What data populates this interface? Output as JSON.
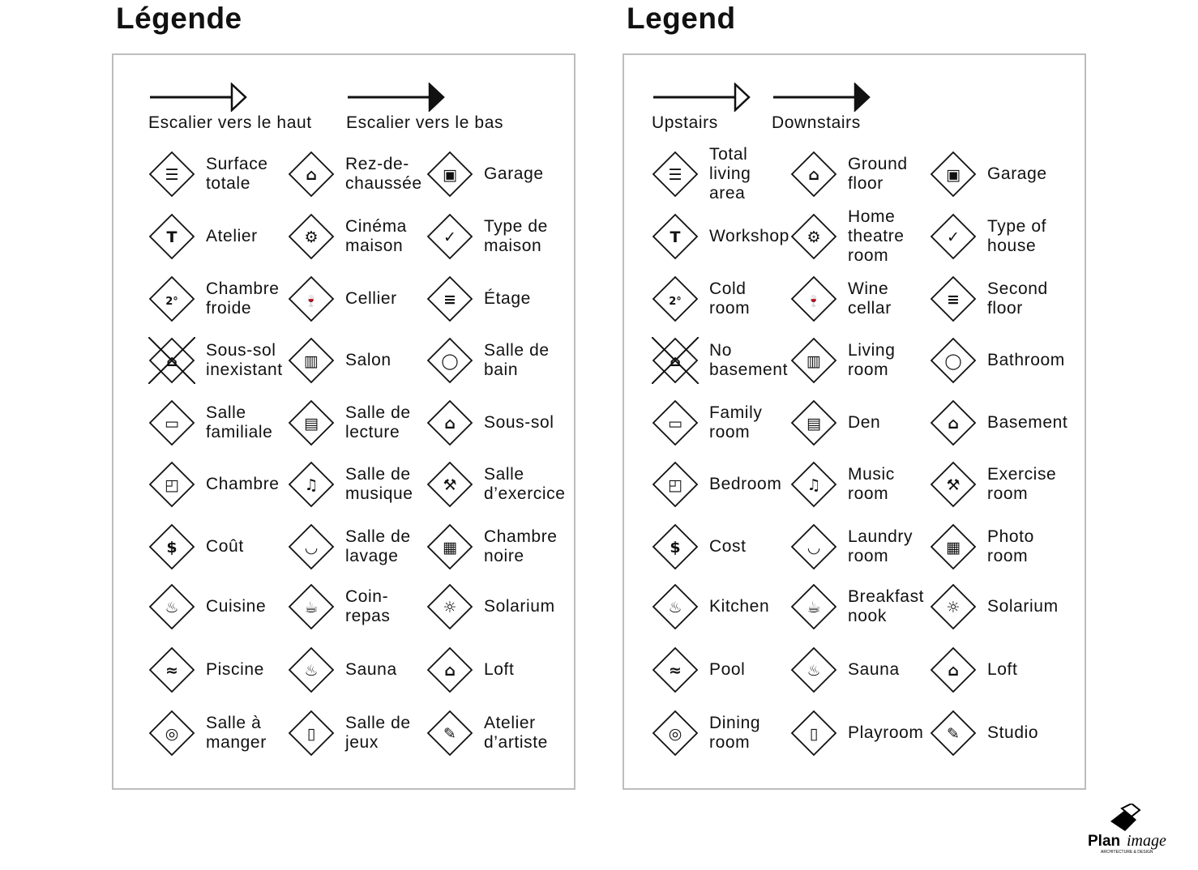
{
  "panels": [
    {
      "title": "Légende",
      "upstairs": "Escalier vers le haut",
      "downstairs": "Escalier vers le bas",
      "items": [
        {
          "label": "Surface\ntotale",
          "icon": "total-area-icon"
        },
        {
          "label": "Rez-de-\nchaussée",
          "icon": "ground-floor-icon"
        },
        {
          "label": "Garage",
          "icon": "garage-icon"
        },
        {
          "label": "Atelier",
          "icon": "hammer-icon"
        },
        {
          "label": "Cinéma\nmaison",
          "icon": "home-theatre-icon"
        },
        {
          "label": "Type de\nmaison",
          "icon": "house-check-icon"
        },
        {
          "label": "Chambre\nfroide",
          "icon": "thermometer-icon"
        },
        {
          "label": "Cellier",
          "icon": "wine-icon"
        },
        {
          "label": "Étage",
          "icon": "second-floor-icon"
        },
        {
          "label": "Sous-sol\ninexistant",
          "icon": "no-basement-icon"
        },
        {
          "label": "Salon",
          "icon": "sofa-icon"
        },
        {
          "label": "Salle de\nbain",
          "icon": "toilet-icon"
        },
        {
          "label": "Salle\nfamiliale",
          "icon": "tv-icon"
        },
        {
          "label": "Salle de\nlecture",
          "icon": "book-icon"
        },
        {
          "label": "Sous-sol",
          "icon": "basement-icon"
        },
        {
          "label": "Chambre",
          "icon": "bed-icon"
        },
        {
          "label": "Salle de\nmusique",
          "icon": "music-note-icon"
        },
        {
          "label": "Salle\nd’exercice",
          "icon": "dumbbell-icon"
        },
        {
          "label": "Coût",
          "icon": "dollar-icon"
        },
        {
          "label": "Salle de\nlavage",
          "icon": "laundry-basket-icon"
        },
        {
          "label": "Chambre\nnoire",
          "icon": "camera-icon"
        },
        {
          "label": "Cuisine",
          "icon": "cooking-pot-icon"
        },
        {
          "label": "Coin-\nrepas",
          "icon": "coffee-cup-icon"
        },
        {
          "label": "Solarium",
          "icon": "sun-icon"
        },
        {
          "label": "Piscine",
          "icon": "swimmer-icon"
        },
        {
          "label": "Sauna",
          "icon": "sauna-icon"
        },
        {
          "label": "Loft",
          "icon": "loft-icon"
        },
        {
          "label": "Salle à\nmanger",
          "icon": "plate-cutlery-icon"
        },
        {
          "label": "Salle de\njeux",
          "icon": "playing-card-icon"
        },
        {
          "label": "Atelier\nd’artiste",
          "icon": "palette-icon"
        }
      ]
    },
    {
      "title": "Legend",
      "upstairs": "Upstairs",
      "downstairs": "Downstairs",
      "items": [
        {
          "label": "Total\nliving\narea",
          "icon": "total-area-icon"
        },
        {
          "label": "Ground\nfloor",
          "icon": "ground-floor-icon"
        },
        {
          "label": "Garage",
          "icon": "garage-icon"
        },
        {
          "label": "Workshop",
          "icon": "hammer-icon"
        },
        {
          "label": "Home\ntheatre\nroom",
          "icon": "home-theatre-icon"
        },
        {
          "label": "Type of\nhouse",
          "icon": "house-check-icon"
        },
        {
          "label": "Cold\nroom",
          "icon": "thermometer-icon"
        },
        {
          "label": "Wine\ncellar",
          "icon": "wine-icon"
        },
        {
          "label": "Second\nfloor",
          "icon": "second-floor-icon"
        },
        {
          "label": "No\nbasement",
          "icon": "no-basement-icon"
        },
        {
          "label": "Living\nroom",
          "icon": "sofa-icon"
        },
        {
          "label": "Bathroom",
          "icon": "toilet-icon"
        },
        {
          "label": "Family\nroom",
          "icon": "tv-icon"
        },
        {
          "label": "Den",
          "icon": "book-icon"
        },
        {
          "label": "Basement",
          "icon": "basement-icon"
        },
        {
          "label": "Bedroom",
          "icon": "bed-icon"
        },
        {
          "label": "Music\nroom",
          "icon": "music-note-icon"
        },
        {
          "label": "Exercise\nroom",
          "icon": "dumbbell-icon"
        },
        {
          "label": "Cost",
          "icon": "dollar-icon"
        },
        {
          "label": "Laundry\nroom",
          "icon": "laundry-basket-icon"
        },
        {
          "label": "Photo\nroom",
          "icon": "camera-icon"
        },
        {
          "label": "Kitchen",
          "icon": "cooking-pot-icon"
        },
        {
          "label": "Breakfast\nnook",
          "icon": "coffee-cup-icon"
        },
        {
          "label": "Solarium",
          "icon": "sun-icon"
        },
        {
          "label": "Pool",
          "icon": "swimmer-icon"
        },
        {
          "label": "Sauna",
          "icon": "sauna-icon"
        },
        {
          "label": "Loft",
          "icon": "loft-icon"
        },
        {
          "label": "Dining\nroom",
          "icon": "plate-cutlery-icon"
        },
        {
          "label": "Playroom",
          "icon": "playing-card-icon"
        },
        {
          "label": "Studio",
          "icon": "palette-icon"
        }
      ]
    }
  ],
  "logo": {
    "brand": "Planimage",
    "tagline": "ARCHITECTURE & DESIGN"
  }
}
